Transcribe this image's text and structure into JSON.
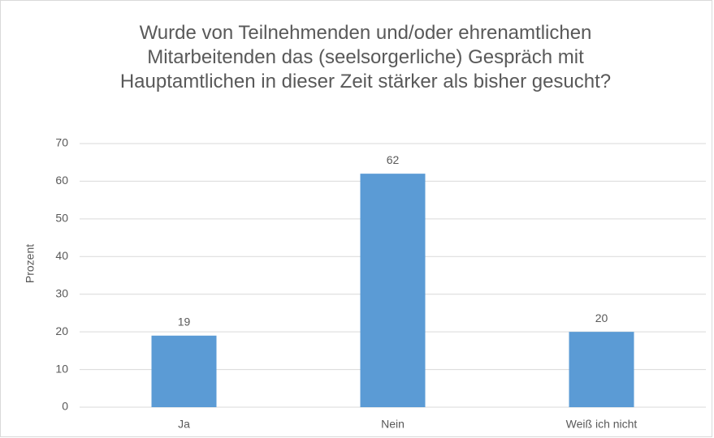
{
  "chart_data": {
    "type": "bar",
    "title": "Wurde von Teilnehmenden und/oder ehrenamtlichen Mitarbeitenden das (seelsorgerliche) Gespräch mit Hauptamtlichen in dieser Zeit stärker als bisher gesucht?",
    "y_label": "Prozent",
    "categories": [
      "Ja",
      "Nein",
      "Weiß ich nicht"
    ],
    "values": [
      19,
      62,
      20
    ],
    "color": "#5b9bd5",
    "ylim": [
      0,
      70
    ],
    "yticks": [
      0,
      10,
      20,
      30,
      40,
      50,
      60,
      70
    ],
    "grid": true
  }
}
